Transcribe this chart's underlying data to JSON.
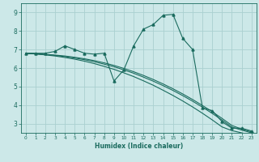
{
  "xlabel": "Humidex (Indice chaleur)",
  "ylabel": "",
  "background_color": "#cce8e8",
  "grid_color": "#aad0d0",
  "line_color": "#1a6b5e",
  "xlim": [
    -0.5,
    23.5
  ],
  "ylim": [
    2.5,
    9.5
  ],
  "yticks": [
    3,
    4,
    5,
    6,
    7,
    8,
    9
  ],
  "xticks": [
    0,
    1,
    2,
    3,
    4,
    5,
    6,
    7,
    8,
    9,
    10,
    11,
    12,
    13,
    14,
    15,
    16,
    17,
    18,
    19,
    20,
    21,
    22,
    23
  ],
  "x_main": [
    0,
    1,
    2,
    3,
    4,
    5,
    6,
    7,
    8,
    9,
    10,
    11,
    12,
    13,
    14,
    15,
    16,
    17,
    18,
    19,
    20,
    21,
    22,
    23
  ],
  "y_main": [
    6.8,
    6.8,
    6.8,
    6.9,
    7.2,
    7.0,
    6.8,
    6.75,
    6.8,
    5.3,
    5.9,
    7.2,
    8.1,
    8.35,
    8.85,
    8.9,
    7.6,
    7.0,
    3.85,
    3.7,
    3.1,
    2.75,
    2.75,
    2.6
  ],
  "y_line2": [
    6.8,
    6.77,
    6.74,
    6.7,
    6.65,
    6.58,
    6.5,
    6.4,
    6.28,
    6.14,
    5.98,
    5.8,
    5.6,
    5.38,
    5.14,
    4.88,
    4.6,
    4.3,
    3.98,
    3.64,
    3.28,
    2.9,
    2.7,
    2.55
  ],
  "y_line3": [
    6.8,
    6.77,
    6.73,
    6.68,
    6.62,
    6.54,
    6.45,
    6.34,
    6.21,
    6.07,
    5.9,
    5.72,
    5.51,
    5.29,
    5.05,
    4.79,
    4.51,
    4.21,
    3.89,
    3.55,
    3.19,
    2.81,
    2.65,
    2.5
  ],
  "y_line4": [
    6.8,
    6.76,
    6.71,
    6.65,
    6.57,
    6.48,
    6.37,
    6.24,
    6.09,
    5.93,
    5.74,
    5.54,
    5.31,
    5.07,
    4.8,
    4.52,
    4.22,
    3.9,
    3.56,
    3.2,
    2.82,
    2.62,
    2.5,
    2.38
  ]
}
